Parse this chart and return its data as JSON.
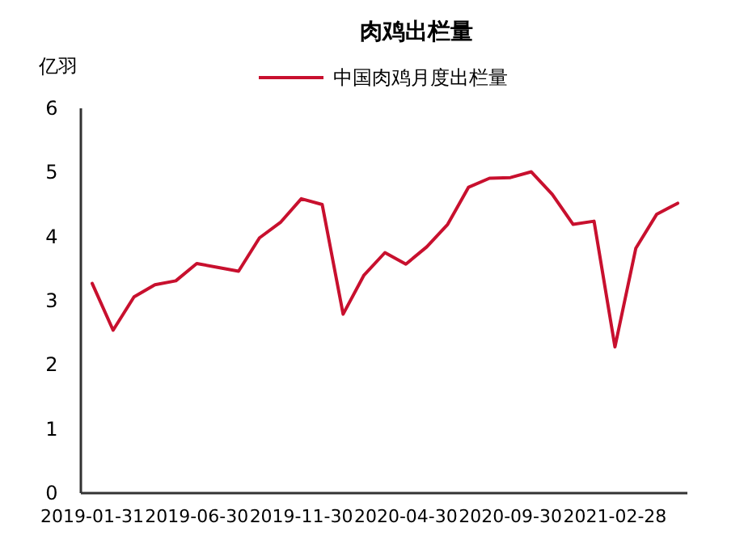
{
  "chart_data": {
    "type": "line",
    "title": "肉鸡出栏量",
    "ylabel": "亿羽",
    "categories": [
      "2019-01-31",
      null,
      null,
      null,
      null,
      "2019-06-30",
      null,
      null,
      null,
      null,
      "2019-11-30",
      null,
      null,
      null,
      null,
      "2020-04-30",
      null,
      null,
      null,
      null,
      "2020-09-30",
      null,
      null,
      null,
      null,
      "2021-02-28",
      null,
      null,
      null
    ],
    "series": [
      {
        "name": "中国肉鸡月度出栏量",
        "color": "#c8102e",
        "values": [
          3.27,
          2.54,
          3.06,
          3.25,
          3.31,
          3.58,
          3.52,
          3.46,
          3.98,
          4.22,
          4.59,
          4.5,
          2.79,
          3.4,
          3.75,
          3.57,
          3.84,
          4.19,
          4.77,
          4.91,
          4.92,
          5.01,
          4.66,
          4.19,
          4.24,
          2.28,
          3.82,
          4.35,
          4.52
        ]
      }
    ],
    "ylim": [
      0,
      6
    ],
    "yticks": [
      0,
      1,
      2,
      3,
      4,
      5,
      6
    ],
    "grid": false,
    "legend": "top",
    "marker": "none",
    "line_style": "solid"
  }
}
